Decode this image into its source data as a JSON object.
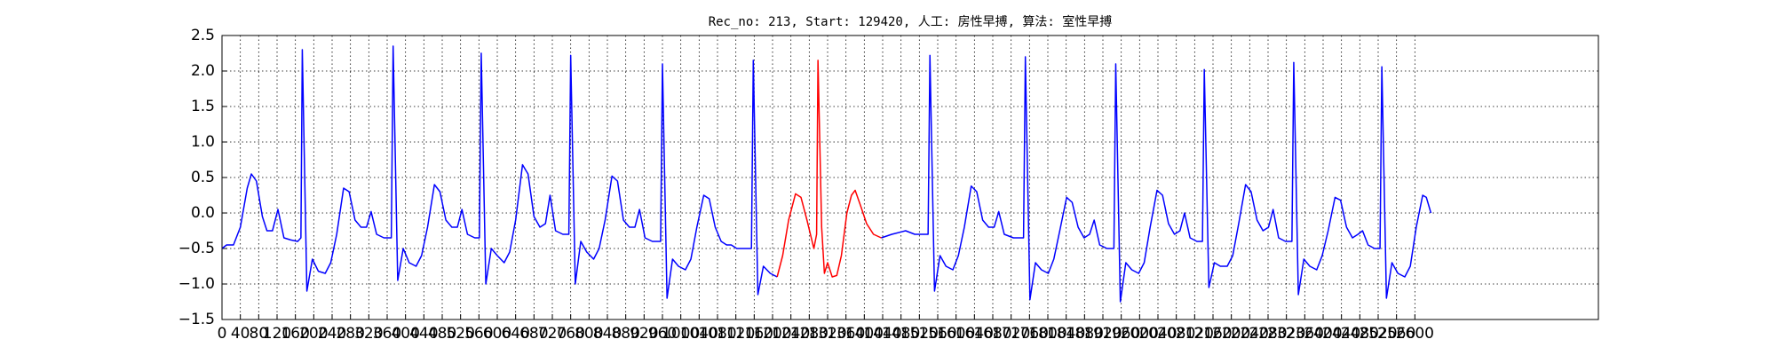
{
  "chart_data": {
    "type": "line",
    "title": "Rec_no: 213, Start: 129420, 人工: 房性早搏, 算法: 室性早搏",
    "xlim": [
      0,
      3000
    ],
    "ylim": [
      -1.5,
      2.5
    ],
    "xticks": [
      0,
      40,
      80,
      120,
      160,
      200,
      240,
      280,
      320,
      360,
      400,
      440,
      480,
      520,
      560,
      600,
      640,
      680,
      720,
      760,
      800,
      840,
      880,
      920,
      960,
      1000,
      1040,
      1080,
      1120,
      1160,
      1200,
      1240,
      1280,
      1320,
      1360,
      1400,
      1440,
      1480,
      1520,
      1560,
      1600,
      1640,
      1680,
      1720,
      1760,
      1800,
      1840,
      1880,
      1920,
      1960,
      2000,
      2040,
      2080,
      2120,
      2160,
      2200,
      2240,
      2280,
      2320,
      2360,
      2400,
      2440,
      2480,
      2520,
      2560,
      2600
    ],
    "yticks": [
      {
        "value": -1.5,
        "label": "−1.5"
      },
      {
        "value": -1.0,
        "label": "−1.0"
      },
      {
        "value": -0.5,
        "label": "−0.5"
      },
      {
        "value": 0,
        "label": "0.0"
      },
      0.5,
      {
        "value": 1.0,
        "label": "1.0"
      },
      1.5,
      {
        "value": 2.0,
        "label": "2.0"
      },
      2.5
    ],
    "grid": true,
    "series": [
      {
        "color": "#0000ff",
        "x": [
          0,
          10,
          25,
          40,
          55,
          64,
          75,
          88,
          98,
          110,
          122,
          135,
          150,
          165,
          172,
          175,
          185,
          197,
          210,
          225,
          237,
          250,
          265,
          277,
          290,
          303,
          315,
          325,
          337,
          353,
          369,
          373,
          383,
          395,
          408,
          423,
          435,
          448,
          463,
          475,
          488,
          501,
          513,
          523,
          535,
          551,
          561,
          565,
          575,
          587,
          600,
          615,
          627,
          640,
          655,
          667,
          680,
          693,
          705,
          715,
          727,
          743,
          756,
          760,
          770,
          782,
          795,
          810,
          822,
          835,
          850,
          862,
          875,
          888,
          900,
          910,
          922,
          938,
          956,
          960,
          970,
          982,
          995,
          1010,
          1022,
          1035,
          1050,
          1062,
          1075,
          1088,
          1100,
          1110,
          1122,
          1138,
          1154,
          1158,
          1168,
          1180,
          1195,
          1210,
          null,
          1437,
          1460,
          1490,
          1510,
          1530,
          1539,
          1543,
          1553,
          1565,
          1578,
          1593,
          1605,
          1618,
          1633,
          1645,
          1658,
          1671,
          1683,
          1693,
          1705,
          1725,
          1747,
          1751,
          1761,
          1773,
          1786,
          1801,
          1813,
          1826,
          1841,
          1853,
          1866,
          1879,
          1891,
          1901,
          1913,
          1929,
          1944,
          1948,
          1958,
          1970,
          1983,
          1998,
          2010,
          2023,
          2038,
          2050,
          2063,
          2076,
          2088,
          2098,
          2110,
          2125,
          2137,
          2141,
          2151,
          2163,
          2176,
          2191,
          2203,
          2216,
          2231,
          2243,
          2256,
          2269,
          2281,
          2291,
          2303,
          2318,
          2332,
          2336,
          2346,
          2358,
          2371,
          2386,
          2398,
          2411,
          2426,
          2438,
          2451,
          2464,
          2476,
          2486,
          2498,
          2512,
          2524,
          2528,
          2538,
          2550,
          2563,
          2578,
          2590,
          2603,
          2617,
          2625,
          2635
        ],
        "values": [
          -0.5,
          -0.45,
          -0.45,
          -0.2,
          0.35,
          0.55,
          0.45,
          -0.05,
          -0.25,
          -0.25,
          0.05,
          -0.35,
          -0.38,
          -0.4,
          -0.35,
          2.3,
          -1.1,
          -0.65,
          -0.82,
          -0.85,
          -0.7,
          -0.3,
          0.35,
          0.3,
          -0.1,
          -0.2,
          -0.2,
          0.02,
          -0.3,
          -0.35,
          -0.35,
          2.35,
          -0.95,
          -0.5,
          -0.7,
          -0.75,
          -0.6,
          -0.2,
          0.4,
          0.3,
          -0.1,
          -0.2,
          -0.2,
          0.05,
          -0.3,
          -0.35,
          -0.35,
          2.25,
          -1.0,
          -0.5,
          -0.6,
          -0.7,
          -0.55,
          -0.1,
          0.68,
          0.55,
          -0.05,
          -0.2,
          -0.15,
          0.25,
          -0.25,
          -0.3,
          -0.3,
          2.22,
          -1.0,
          -0.4,
          -0.55,
          -0.65,
          -0.5,
          -0.1,
          0.52,
          0.45,
          -0.1,
          -0.2,
          -0.2,
          0.05,
          -0.35,
          -0.4,
          -0.4,
          2.1,
          -1.2,
          -0.65,
          -0.75,
          -0.8,
          -0.65,
          -0.2,
          0.25,
          0.2,
          -0.2,
          -0.4,
          -0.45,
          -0.45,
          -0.5,
          -0.5,
          -0.5,
          2.15,
          -1.15,
          -0.75,
          -0.85,
          -0.9,
          null,
          -0.35,
          -0.3,
          -0.25,
          -0.3,
          -0.3,
          -0.3,
          2.22,
          -1.1,
          -0.6,
          -0.75,
          -0.8,
          -0.6,
          -0.2,
          0.38,
          0.3,
          -0.1,
          -0.2,
          -0.2,
          0.02,
          -0.3,
          -0.35,
          -0.35,
          2.2,
          -1.22,
          -0.7,
          -0.8,
          -0.85,
          -0.65,
          -0.25,
          0.22,
          0.15,
          -0.2,
          -0.35,
          -0.3,
          -0.1,
          -0.45,
          -0.5,
          -0.5,
          2.1,
          -1.25,
          -0.7,
          -0.8,
          -0.85,
          -0.7,
          -0.2,
          0.32,
          0.25,
          -0.15,
          -0.3,
          -0.25,
          0.0,
          -0.35,
          -0.4,
          -0.4,
          2.02,
          -1.05,
          -0.7,
          -0.75,
          -0.75,
          -0.6,
          -0.15,
          0.4,
          0.3,
          -0.1,
          -0.25,
          -0.2,
          0.05,
          -0.35,
          -0.4,
          -0.4,
          2.12,
          -1.15,
          -0.65,
          -0.75,
          -0.8,
          -0.6,
          -0.25,
          0.22,
          0.18,
          -0.2,
          -0.35,
          -0.3,
          -0.25,
          -0.45,
          -0.5,
          -0.5,
          2.06,
          -1.2,
          -0.7,
          -0.85,
          -0.9,
          -0.75,
          -0.2,
          0.25,
          0.22,
          0.0
        ]
      },
      {
        "color": "#ff0000",
        "x": [
          1210,
          1222,
          1235,
          1250,
          1262,
          1275,
          1290,
          1296,
          1299,
          1307,
          1313,
          1320,
          1330,
          1340,
          1350,
          1362,
          1372,
          1380,
          1392,
          1405,
          1420,
          1437
        ],
        "values": [
          -0.9,
          -0.6,
          -0.1,
          0.27,
          0.22,
          -0.1,
          -0.5,
          -0.3,
          2.15,
          -0.2,
          -0.85,
          -0.7,
          -0.9,
          -0.88,
          -0.6,
          0.0,
          0.25,
          0.32,
          0.1,
          -0.15,
          -0.3,
          -0.35
        ]
      }
    ]
  }
}
